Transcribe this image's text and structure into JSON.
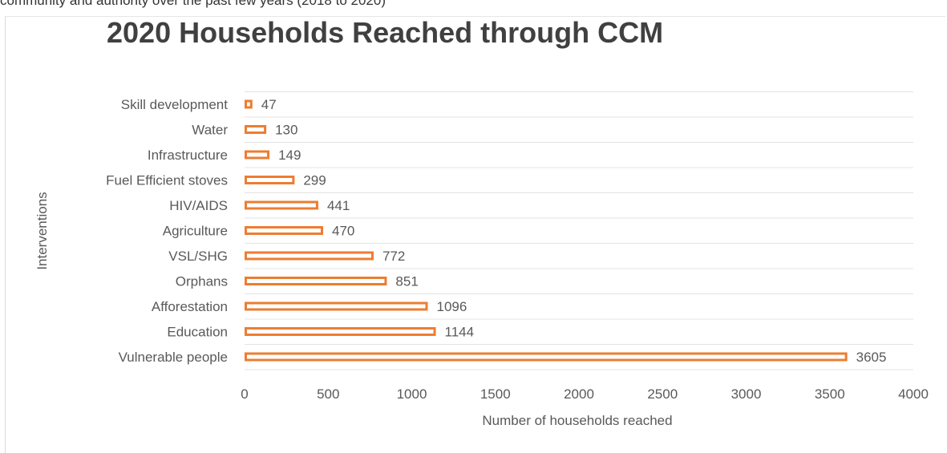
{
  "top_text": "community and authority over the past few years (2018 to 2020)",
  "chart_data": {
    "type": "bar",
    "orientation": "horizontal",
    "title": "2020 Households Reached through CCM",
    "xlabel": "Number of households reached",
    "ylabel": "Interventions",
    "categories": [
      "Skill development",
      "Water",
      "Infrastructure",
      "Fuel Efficient stoves",
      "HIV/AIDS",
      "Agriculture",
      "VSL/SHG",
      "Orphans",
      "Afforestation",
      "Education",
      "Vulnerable people"
    ],
    "values": [
      47,
      130,
      149,
      299,
      441,
      470,
      772,
      851,
      1096,
      1144,
      3605
    ],
    "xlim": [
      0,
      4000
    ],
    "xticks": [
      "0",
      "500",
      "1000",
      "1500",
      "2000",
      "2500",
      "3000",
      "3500",
      "4000"
    ],
    "grid": true,
    "legend": "none",
    "bar_color": "#ed7d31"
  }
}
